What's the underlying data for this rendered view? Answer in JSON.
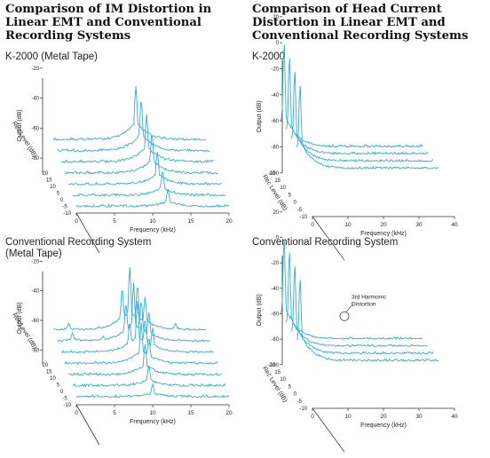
{
  "titles": {
    "left": "Comparison of IM Distortion in\nLinear EMT and Conventional\nRecording Systems",
    "right": "Comparison of Head Current\nDistortion in Linear EMT and\nConventional Recording Systems"
  },
  "colors": {
    "trace": "#3aa9cf",
    "axis": "#333333",
    "grid": "#555555"
  },
  "chart_data": [
    {
      "id": "im-emt",
      "type": "waterfall",
      "subtitle": "K-2000 (Metal Tape)",
      "xlabel": "Frequency (kHz)",
      "ylabel": "Output (dB)",
      "zlabel": "Rec Level (dB)",
      "xlim": [
        0,
        20
      ],
      "ylim": [
        -90,
        0
      ],
      "xticks": [
        "0",
        "5",
        "10",
        "15",
        "20"
      ],
      "yticks": [
        "-20",
        "-40",
        "-60",
        "-80"
      ],
      "zticks": [
        "20",
        "15",
        "10",
        "5",
        "0",
        "-5",
        "-10"
      ],
      "series": [
        {
          "rec_level": 20,
          "noise_floor": -68,
          "peaks": [
            [
              10.8,
              -32
            ]
          ]
        },
        {
          "rec_level": 15,
          "noise_floor": -71,
          "peaks": [
            [
              11.0,
              -36
            ]
          ]
        },
        {
          "rec_level": 10,
          "noise_floor": -74,
          "peaks": [
            [
              11.2,
              -42
            ]
          ]
        },
        {
          "rec_level": 5,
          "noise_floor": -77,
          "peaks": [
            [
              11.4,
              -50
            ]
          ]
        },
        {
          "rec_level": 0,
          "noise_floor": -80,
          "peaks": [
            [
              11.6,
              -58
            ]
          ]
        },
        {
          "rec_level": -5,
          "noise_floor": -83,
          "peaks": [
            [
              11.8,
              -66
            ]
          ]
        },
        {
          "rec_level": -10,
          "noise_floor": -86,
          "peaks": [
            [
              12.0,
              -74
            ]
          ]
        }
      ]
    },
    {
      "id": "hc-emt",
      "type": "waterfall",
      "subtitle": "K-2000",
      "xlabel": "Frequency (kHz)",
      "ylabel": "Output (dB)",
      "zlabel": "Rec Level (dB)",
      "xlim": [
        0,
        40
      ],
      "ylim": [
        -100,
        20
      ],
      "xticks": [
        "0",
        "10",
        "20",
        "30",
        "40"
      ],
      "yticks": [
        "20",
        "0",
        "-20",
        "-40",
        "-60",
        "-80",
        "-100"
      ],
      "zticks": [
        "20",
        "15",
        "10",
        "5",
        "0",
        "-5",
        "-10"
      ],
      "series": [
        {
          "rec_level": 20,
          "noise_floor": -80,
          "peaks": [
            [
              1,
              0
            ]
          ]
        },
        {
          "rec_level": 15,
          "noise_floor": -80,
          "peaks": [
            [
              1,
              -5
            ]
          ]
        },
        {
          "rec_level": 10,
          "noise_floor": -80,
          "peaks": [
            [
              1,
              -10
            ]
          ]
        },
        {
          "rec_level": 5,
          "noise_floor": -80,
          "peaks": [
            [
              1,
              -15
            ]
          ]
        }
      ]
    },
    {
      "id": "im-conv",
      "type": "waterfall",
      "subtitle": "Conventional Recording System\n(Metal Tape)",
      "xlabel": "Frequency (kHz)",
      "ylabel": "Output (dB)",
      "zlabel": "Rec Level (dB)",
      "xlim": [
        0,
        20
      ],
      "ylim": [
        -90,
        0
      ],
      "xticks": [
        "0",
        "5",
        "10",
        "15",
        "20"
      ],
      "yticks": [
        "-20",
        "-40",
        "-60",
        "-80"
      ],
      "zticks": [
        "20",
        "15",
        "10",
        "5",
        "0",
        "-5",
        "-10"
      ],
      "series": [
        {
          "rec_level": 20,
          "noise_floor": -67,
          "peaks": [
            [
              2,
              -62
            ],
            [
              6,
              -64
            ],
            [
              9,
              -38
            ],
            [
              10,
              -24
            ],
            [
              11,
              -36
            ],
            [
              12,
              -44
            ],
            [
              16,
              -62
            ]
          ]
        },
        {
          "rec_level": 15,
          "noise_floor": -70,
          "peaks": [
            [
              2,
              -64
            ],
            [
              6,
              -66
            ],
            [
              9,
              -44
            ],
            [
              10,
              -30
            ],
            [
              11,
              -42
            ],
            [
              12,
              -50
            ]
          ]
        },
        {
          "rec_level": 10,
          "noise_floor": -73,
          "peaks": [
            [
              9,
              -52
            ],
            [
              10,
              -38
            ],
            [
              11,
              -50
            ],
            [
              12,
              -56
            ]
          ]
        },
        {
          "rec_level": 5,
          "noise_floor": -76,
          "peaks": [
            [
              10,
              -48
            ],
            [
              11,
              -58
            ]
          ]
        },
        {
          "rec_level": 0,
          "noise_floor": -79,
          "peaks": [
            [
              10,
              -58
            ]
          ]
        },
        {
          "rec_level": -5,
          "noise_floor": -82,
          "peaks": [
            [
              10,
              -68
            ]
          ]
        },
        {
          "rec_level": -10,
          "noise_floor": -85,
          "peaks": [
            [
              10,
              -76
            ]
          ]
        }
      ]
    },
    {
      "id": "hc-conv",
      "type": "waterfall",
      "subtitle": "Conventional Recording System",
      "xlabel": "Frequency (kHz)",
      "ylabel": "Output (dB)",
      "zlabel": "Rec Level (dB)",
      "xlim": [
        0,
        40
      ],
      "ylim": [
        -100,
        20
      ],
      "xticks": [
        "0",
        "10",
        "20",
        "30",
        "40"
      ],
      "yticks": [
        "20",
        "0",
        "-20",
        "-40",
        "-60",
        "-80",
        "-100"
      ],
      "zticks": [
        "20",
        "15",
        "10",
        "5",
        "0",
        "-5",
        "-10"
      ],
      "annotation": "3rd Harmonic\nDistortion",
      "series": [
        {
          "rec_level": 20,
          "noise_floor": -80,
          "peaks": [
            [
              1,
              0
            ],
            [
              3,
              -62
            ]
          ]
        },
        {
          "rec_level": 15,
          "noise_floor": -80,
          "peaks": [
            [
              1,
              -5
            ],
            [
              3,
              -72
            ]
          ]
        },
        {
          "rec_level": 10,
          "noise_floor": -80,
          "peaks": [
            [
              1,
              -10
            ]
          ]
        },
        {
          "rec_level": 5,
          "noise_floor": -80,
          "peaks": [
            [
              1,
              -15
            ]
          ]
        }
      ]
    }
  ]
}
